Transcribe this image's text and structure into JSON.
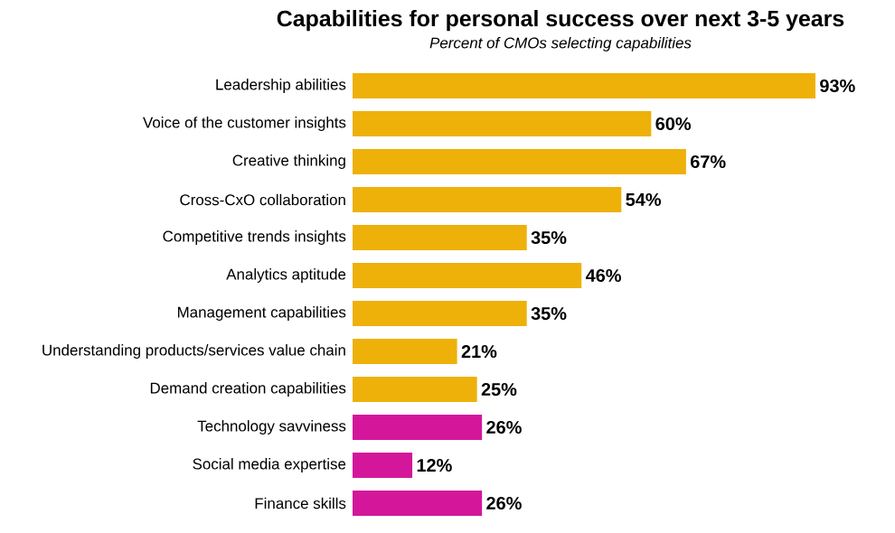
{
  "chart_data": {
    "type": "bar",
    "orientation": "horizontal",
    "title": "Capabilities for personal success over next 3-5 years",
    "subtitle": "Percent of CMOs selecting capabilities",
    "categories": [
      "Leadership abilities",
      "Voice of the customer insights",
      "Creative thinking",
      "Cross-CxO collaboration",
      "Competitive trends insights",
      "Analytics aptitude",
      "Management capabilities",
      "Understanding products/services value chain",
      "Demand creation capabilities",
      "Technology savviness",
      "Social media expertise",
      "Finance skills"
    ],
    "values": [
      93,
      60,
      67,
      54,
      35,
      46,
      35,
      21,
      25,
      26,
      12,
      26
    ],
    "value_labels": [
      "93%",
      "60%",
      "67%",
      "54%",
      "35%",
      "46%",
      "35%",
      "21%",
      "25%",
      "26%",
      "12%",
      "26%"
    ],
    "colors": [
      "#eeb10a",
      "#eeb10a",
      "#eeb10a",
      "#eeb10a",
      "#eeb10a",
      "#eeb10a",
      "#eeb10a",
      "#eeb10a",
      "#eeb10a",
      "#d4179a",
      "#d4179a",
      "#d4179a"
    ],
    "data_labels": false
  }
}
